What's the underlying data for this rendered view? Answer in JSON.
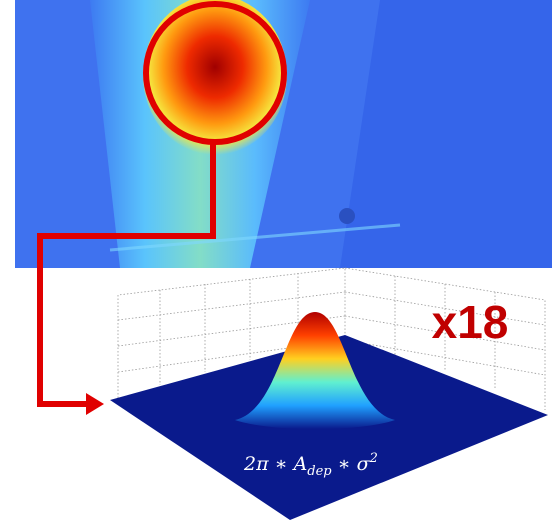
{
  "magnification": "x18",
  "formula": {
    "base": "2π ∗ A",
    "sub": "dep",
    "mid": " ∗ σ",
    "sup": "2"
  }
}
